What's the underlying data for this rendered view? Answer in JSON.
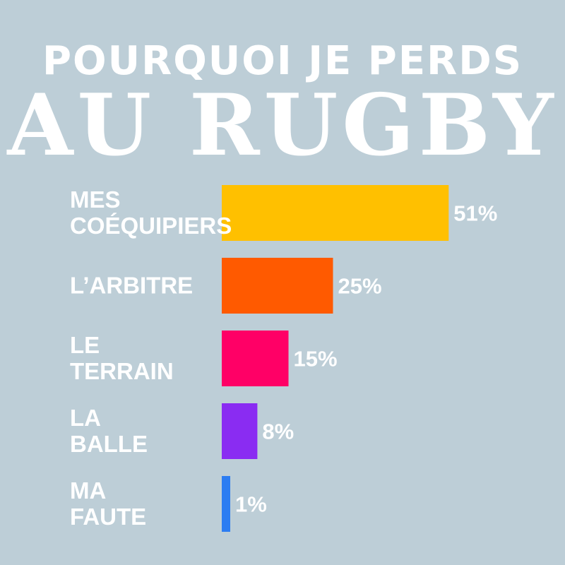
{
  "title_line1": "POURQUOI JE PERDS",
  "title_line2": "AU RUGBY",
  "background_color": "#bdced7",
  "chart_data": {
    "type": "bar",
    "orientation": "horizontal",
    "title": "POURQUOI JE PERDS AU RUGBY",
    "categories": [
      [
        "MES",
        "COÉQUIPIERS"
      ],
      [
        "L’ARBITRE"
      ],
      [
        "LE",
        "TERRAIN"
      ],
      [
        "LA",
        "BALLE"
      ],
      [
        "MA",
        "FAUTE"
      ]
    ],
    "values": [
      51,
      25,
      15,
      8,
      1
    ],
    "value_labels": [
      "51%",
      "25%",
      "15%",
      "8%",
      "1%"
    ],
    "colors": [
      "#ffc000",
      "#ff5a00",
      "#ff0066",
      "#8a2cf2",
      "#2c7df2"
    ],
    "grid": false,
    "legend": "none"
  }
}
